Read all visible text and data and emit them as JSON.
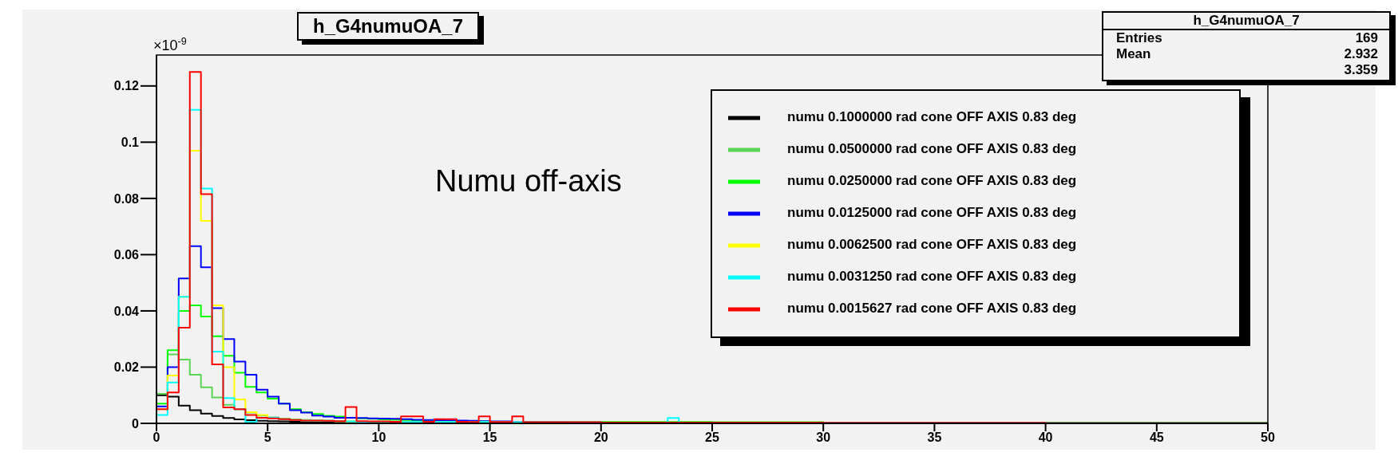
{
  "chart_data": {
    "type": "histogram",
    "title": "h_G4numuOA_7",
    "ylabel": "×10$^{-9}$",
    "annotations": [
      "Numu off-axis",
      "h_G4numuOA_7",
      "Entries",
      "169",
      "Mean",
      "2.932",
      "3.359"
    ],
    "bins": [
      0,
      0.5,
      1,
      1.5,
      2,
      2.5,
      3,
      3.5,
      4,
      4.5,
      5,
      5.5,
      6,
      6.5,
      7,
      7.5,
      8,
      8.5,
      9,
      9.5,
      10,
      10.5,
      11,
      11.5,
      12,
      12.5,
      13,
      13.5,
      14,
      14.5,
      15,
      15.5,
      16,
      16.5,
      17,
      17.5,
      18,
      18.5,
      19,
      19.5,
      20,
      20.5,
      21,
      21.5,
      22,
      22.5,
      23,
      23.5,
      24,
      24.5,
      25,
      25.5,
      26,
      26.5,
      27,
      27.5,
      28,
      28.5,
      29,
      29.5,
      30,
      30.5,
      31,
      31.5,
      32,
      32.5,
      33,
      33.5,
      34,
      34.5,
      35,
      35.5,
      36,
      36.5,
      37,
      37.5,
      38,
      38.5,
      39,
      39.5,
      40,
      40.5,
      41,
      41.5,
      42,
      42.5,
      43,
      43.5,
      44,
      44.5,
      45,
      45.5,
      46,
      46.5,
      47,
      47.5,
      48,
      48.5,
      49,
      49.5,
      50
    ],
    "series": [
      {
        "name": "numu 0.1000000 rad cone OFF AXIS 0.83 deg",
        "color": "#000000",
        "values": [
          0.01,
          0.0095,
          0.0063,
          0.0047,
          0.0035,
          0.0026,
          0.0019,
          0.0014,
          0.0011,
          0.0009,
          0.0008,
          0.0007,
          0.0006,
          0.0005,
          0.0005,
          0.0004,
          0.0004,
          0.0004,
          0.0003,
          0.0003,
          0.0003,
          0.0003,
          0.0003,
          0.0003,
          0.0003,
          0.0003,
          0.0003,
          0.0003,
          0.0003,
          0.0003,
          0.0002,
          0.0002,
          0.0002,
          0.0002,
          0.0002,
          0.0002,
          0.0002,
          0.0002,
          0.0002,
          0.0002,
          0.0002,
          0.0002,
          0.0002,
          0.0002,
          0.0002,
          0.0002,
          0.0002,
          0.0002,
          0.0002,
          0.0002,
          0.0001,
          0.0001,
          0.0001,
          0.0001,
          0.0001,
          0.0001,
          0.0001,
          0.0001,
          0.0001,
          0.0001,
          0.0001,
          0.0001,
          0.0001,
          0.0001,
          0.0001,
          0.0001,
          0.0001,
          0.0001,
          0.0001,
          0.0001,
          0.0001,
          0.0001,
          0.0001,
          0.0001,
          0.0001,
          0.0001,
          0.0001,
          0.0001,
          0.0001,
          0.0001,
          0.0001,
          0.0001,
          0.0001,
          0.0001,
          0.0001,
          0.0001,
          0.0001,
          0.0001,
          0.0001,
          0.0001,
          0.0001,
          0.0001,
          0.0001,
          0.0001,
          0.0001,
          0.0001,
          0.0001,
          0.0001,
          0.0001,
          0.0001
        ]
      },
      {
        "name": "numu 0.0500000 rad cone OFF AXIS 0.83 deg",
        "color": "#59d454",
        "values": [
          0.0105,
          0.0245,
          0.0227,
          0.0173,
          0.0128,
          0.0092,
          0.0066,
          0.005,
          0.0038,
          0.0028,
          0.0021,
          0.0017,
          0.0014,
          0.0012,
          0.001,
          0.0009,
          0.0008,
          0.0007,
          0.0006,
          0.0006,
          0.0005,
          0.0005,
          0.0005,
          0.0005,
          0.0005,
          0.0005,
          0.0005,
          0.0005,
          0.0005,
          0.0005,
          0.0004,
          0.0004,
          0.0004,
          0.0004,
          0.0004,
          0.0004,
          0.0004,
          0.0004,
          0.0004,
          0.0004,
          0.0003,
          0.0003,
          0.0003,
          0.0003,
          0.0003,
          0.0003,
          0.0003,
          0.0003,
          0.0003,
          0.0003,
          0.0003,
          0.0003,
          0.0003,
          0.0003,
          0.0003,
          0.0003,
          0.0003,
          0.0003,
          0.0003,
          0.0003,
          0.0002,
          0.0002,
          0.0002,
          0.0002,
          0.0002,
          0.0002,
          0.0002,
          0.0002,
          0.0002,
          0.0002,
          0.0002,
          0.0002,
          0.0002,
          0.0002,
          0.0002,
          0.0002,
          0.0002,
          0.0002,
          0.0002,
          0.0002,
          0.0001,
          0.0001,
          0.0001,
          0.0001,
          0.0001,
          0.0001,
          0.0001,
          0.0001,
          0.0001,
          0.0001,
          0.0001,
          0.0001,
          0.0001,
          0.0001,
          0.0001,
          0.0001,
          0.0001,
          0.0001,
          0.0001,
          0.0001
        ]
      },
      {
        "name": "numu 0.0250000 rad cone OFF AXIS 0.83 deg",
        "color": "#00ff00",
        "values": [
          0.007,
          0.026,
          0.04,
          0.042,
          0.038,
          0.031,
          0.024,
          0.018,
          0.013,
          0.011,
          0.0088,
          0.007,
          0.005,
          0.004,
          0.0033,
          0.0027,
          0.0024,
          0.002,
          0.0018,
          0.0016,
          0.0014,
          0.0013,
          0.0012,
          0.0011,
          0.001,
          0.001,
          0.0009,
          0.0008,
          0.0008,
          0.0007,
          0.0006,
          0.0006,
          0.0006,
          0.0006,
          0.0006,
          0.0006,
          0.0006,
          0.0006,
          0.0006,
          0.0006,
          0.0005,
          0.0005,
          0.0005,
          0.0005,
          0.0005,
          0.0005,
          0.0005,
          0.0005,
          0.0005,
          0.0005,
          0.0004,
          0.0004,
          0.0004,
          0.0004,
          0.0004,
          0.0004,
          0.0004,
          0.0004,
          0.0004,
          0.0004,
          0.0003,
          0.0003,
          0.0003,
          0.0003,
          0.0003,
          0.0003,
          0.0003,
          0.0003,
          0.0003,
          0.0003,
          0.0003,
          0.0003,
          0.0003,
          0.0003,
          0.0003,
          0.0003,
          0.0003,
          0.0003,
          0.0003,
          0.0003,
          0.0002,
          0.0002,
          0.0002,
          0.0002,
          0.0002,
          0.0002,
          0.0002,
          0.0002,
          0.0002,
          0.0002,
          0.0002,
          0.0002,
          0.0002,
          0.0002,
          0.0002,
          0.0002,
          0.0002,
          0.0002,
          0.0002,
          0.0002
        ]
      },
      {
        "name": "numu 0.0125000 rad cone OFF AXIS 0.83 deg",
        "color": "#0000ff",
        "values": [
          0.006,
          0.02,
          0.0515,
          0.063,
          0.0555,
          0.041,
          0.03,
          0.022,
          0.0173,
          0.012,
          0.0095,
          0.007,
          0.0047,
          0.0038,
          0.0028,
          0.0024,
          0.002,
          0.002,
          0.0019,
          0.0018,
          0.0017,
          0.0016,
          0.0015,
          0.0013,
          0.0012,
          0.0011,
          0.001,
          0.001,
          0.0009,
          0.0008,
          0.0007,
          0.0007,
          0.0006,
          0.0006,
          0.0005,
          0.0005,
          0.0005,
          0.0004,
          0.0004,
          0.0004,
          0.0003,
          0.0003,
          0.0003,
          0.0003,
          0.0003,
          0.0003,
          0.0003,
          0.0003,
          0.0003,
          0.0003,
          0.0003,
          0.0003,
          0.0003,
          0.0003,
          0.0003,
          0.0003,
          0.0003,
          0.0003,
          0.0003,
          0.0003,
          0.0002,
          0.0002,
          0.0002,
          0.0002,
          0.0002,
          0.0002,
          0.0002,
          0.0002,
          0.0002,
          0.0002,
          0.0002,
          0.0002,
          0.0002,
          0.0002,
          0.0002,
          0.0002,
          0.0002,
          0.0002,
          0.0002,
          0.0002,
          0.0001,
          0.0001,
          0.0001,
          0.0001,
          0.0001,
          0.0001,
          0.0001,
          0.0001,
          0.0001,
          0.0001,
          0.0001,
          0.0001,
          0.0001,
          0.0001,
          0.0001,
          0.0001,
          0.0001,
          0.0001,
          0.0001,
          0.0001
        ]
      },
      {
        "name": "numu 0.0062500 rad cone OFF AXIS 0.83 deg",
        "color": "#ffff00",
        "values": [
          0.005,
          0.017,
          0.045,
          0.097,
          0.072,
          0.042,
          0.02,
          0.0085,
          0.004,
          0.003,
          0.002,
          0.0015,
          0.0012,
          0.001,
          0.001,
          0.0009,
          0.0008,
          0.0007,
          0.0006,
          0.0006,
          0.0005,
          0.0005,
          0.0005,
          0.0005,
          0.0005,
          0.0005,
          0.0005,
          0.0005,
          0.0005,
          0.0005,
          0.0004,
          0.0004,
          0.0004,
          0.0004,
          0.0004,
          0.0004,
          0.0004,
          0.0004,
          0.0004,
          0.0004,
          0.0003,
          0.0003,
          0.0003,
          0.0003,
          0.0003,
          0.0003,
          0.0003,
          0.0003,
          0.0003,
          0.0003,
          0.0003,
          0.0003,
          0.0003,
          0.0003,
          0.0003,
          0.0003,
          0.0003,
          0.0003,
          0.0003,
          0.0003,
          0.0002,
          0.0002,
          0.0002,
          0.0002,
          0.0002,
          0.0002,
          0.0002,
          0.0002,
          0.0002,
          0.0002,
          0.0002,
          0.0002,
          0.0002,
          0.0002,
          0.0002,
          0.0002,
          0.0002,
          0.0002,
          0.0002,
          0.0002,
          0.0001,
          0.0001,
          0.0001,
          0.0001,
          0.0001,
          0.0001,
          0.0001,
          0.0001,
          0.0001,
          0.0001,
          0.0001,
          0.0001,
          0.0001,
          0.0001,
          0.0001,
          0.0001,
          0.0001,
          0.0001,
          0.0001,
          0.0001
        ]
      },
      {
        "name": "numu 0.0031250 rad cone OFF AXIS 0.83 deg",
        "color": "#00ffff",
        "values": [
          0.003,
          0.0145,
          0.045,
          0.1115,
          0.0835,
          0.0255,
          0.009,
          0.005,
          0.0005,
          0.002,
          0.002,
          0.0015,
          0.0012,
          0.001,
          0.001,
          0.0009,
          0.0008,
          0.0007,
          0.0006,
          0.0006,
          0.0005,
          0.0005,
          0.0005,
          0.0005,
          0.0005,
          0.0005,
          0.0005,
          0.0005,
          0.0005,
          0.0005,
          0.0004,
          0.0004,
          0.0004,
          0.0004,
          0.0004,
          0.0004,
          0.0004,
          0.0004,
          0.0004,
          0.0004,
          0.0003,
          0.0003,
          0.0003,
          0.0003,
          0.0003,
          0.0003,
          0.0019,
          0.0003,
          0.0003,
          0.0003,
          0.0003,
          0.0003,
          0.0003,
          0.0003,
          0.0003,
          0.0003,
          0.0003,
          0.0003,
          0.0003,
          0.0003,
          0.0002,
          0.0002,
          0.0002,
          0.0002,
          0.0002,
          0.0002,
          0.0002,
          0.0002,
          0.0002,
          0.0002,
          0.0002,
          0.0002,
          0.0002,
          0.0002,
          0.0002,
          0.0002,
          0.0002,
          0.0002,
          0.0002,
          0.0002,
          0.0001,
          0.0001,
          0.0001,
          0.0001,
          0.0001,
          0.0001,
          0.0001,
          0.0001,
          0.0001,
          0.0001,
          0.0001,
          0.0001,
          0.0001,
          0.0001,
          0.0001,
          0.0001,
          0.0001,
          0.0001,
          0.0001,
          0.0001
        ]
      },
      {
        "name": "numu 0.0015627 rad cone OFF AXIS 0.83 deg",
        "color": "#ff0000",
        "values": [
          0.005,
          0.011,
          0.034,
          0.125,
          0.0815,
          0.021,
          0.0057,
          0.005,
          0.003,
          0.002,
          0.0018,
          0.0015,
          0.0012,
          0.001,
          0.001,
          0.0009,
          0.0008,
          0.0058,
          0.0008,
          0.0007,
          0.0007,
          0.0006,
          0.0025,
          0.0025,
          0.0006,
          0.0015,
          0.0015,
          0.0006,
          0.0005,
          0.0025,
          0.0005,
          0.0005,
          0.0025,
          0.0004,
          0.0004,
          0.0004,
          0.0004,
          0.0004,
          0.0004,
          0.0004,
          0.0003,
          0.0003,
          0.0003,
          0.0003,
          0.0003,
          0.0003,
          0.0003,
          0.0003,
          0.0003,
          0.0003,
          0.0003,
          0.0003,
          0.0003,
          0.0003,
          0.0003,
          0.0003,
          0.0003,
          0.0003,
          0.0003,
          0.0003,
          0.0002,
          0.0002,
          0.0002,
          0.0002,
          0.0002,
          0.0002,
          0.0002,
          0.0002,
          0.0002,
          0.0002,
          0.0002,
          0.0002,
          0.0002,
          0.0002,
          0.0002,
          0.0002,
          0.0002,
          0.0002,
          0.0002,
          0.0002,
          0.0001,
          0.0001,
          0.0001,
          0.0001,
          0.0001,
          0.0001,
          0.0001,
          0.0001,
          0.0001,
          0.0001,
          0.0001,
          0.0001,
          0.0001,
          0.0001,
          0.0001,
          0.0001,
          0.0001,
          0.0001,
          0.0001,
          0.0001
        ]
      }
    ],
    "xlim": [
      0,
      50
    ],
    "xticks": [
      0,
      5,
      10,
      15,
      20,
      25,
      30,
      35,
      40,
      45,
      50
    ],
    "ylim": [
      0,
      0.131
    ],
    "yticks": [
      0,
      0.02,
      0.04,
      0.06,
      0.08,
      0.1,
      0.12
    ],
    "grid": false,
    "legend": "top right"
  }
}
